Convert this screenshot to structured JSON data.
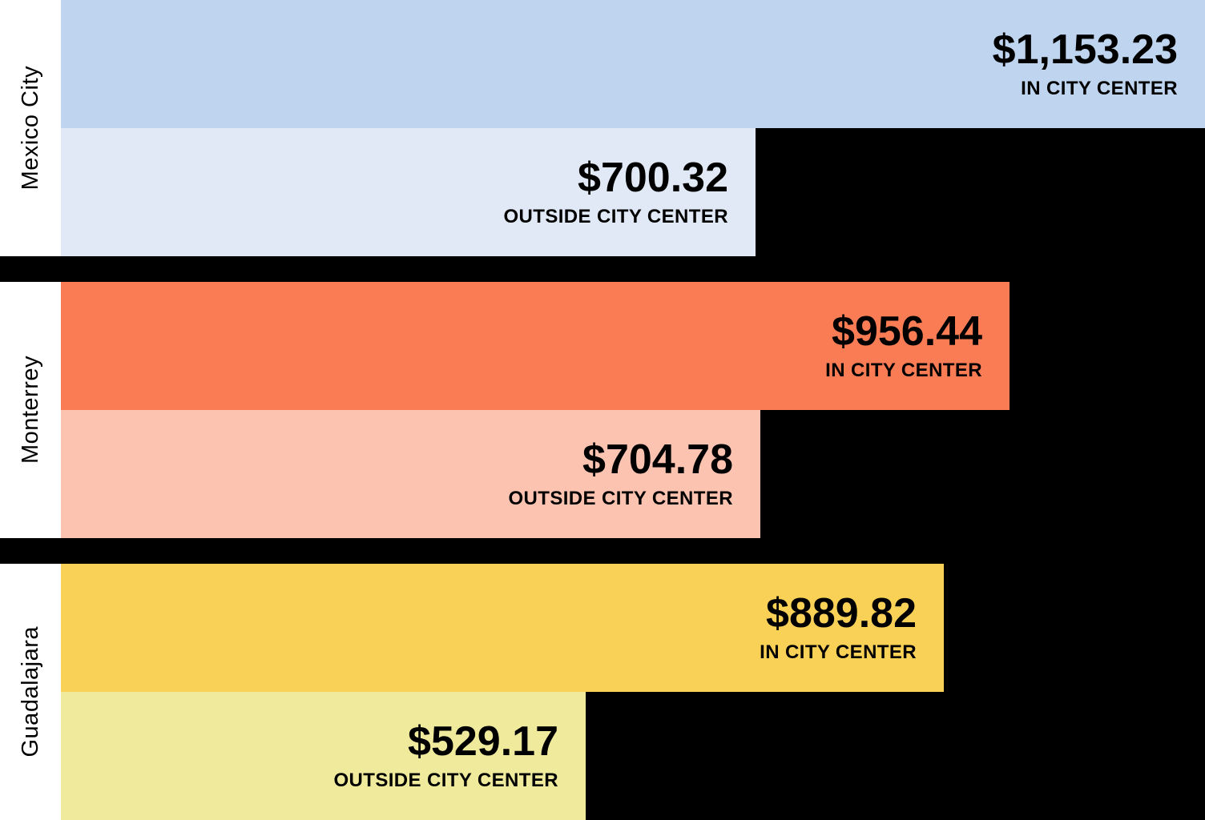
{
  "chart_data": {
    "type": "bar",
    "orientation": "horizontal",
    "unit": "USD",
    "value_axis_max": 1153.23,
    "legend_position": "none",
    "grid": false,
    "categories": [
      "Mexico City",
      "Monterrey",
      "Guadalajara"
    ],
    "series": [
      {
        "name": "IN CITY CENTER",
        "values": [
          1153.23,
          956.44,
          889.82
        ]
      },
      {
        "name": "OUTSIDE CITY CENTER",
        "values": [
          700.32,
          704.78,
          529.17
        ]
      }
    ],
    "cities": [
      {
        "name": "Mexico City",
        "bars": [
          {
            "caption": "IN CITY CENTER",
            "value": 1153.23,
            "display": "$1,153.23",
            "color": "#bed4ef"
          },
          {
            "caption": "OUTSIDE CITY CENTER",
            "value": 700.32,
            "display": "$700.32",
            "color": "#e0e9f5"
          }
        ]
      },
      {
        "name": "Monterrey",
        "bars": [
          {
            "caption": "IN CITY CENTER",
            "value": 956.44,
            "display": "$956.44",
            "color": "#fa7c55"
          },
          {
            "caption": "OUTSIDE CITY CENTER",
            "value": 704.78,
            "display": "$704.78",
            "color": "#fcc3b1"
          }
        ]
      },
      {
        "name": "Guadalajara",
        "bars": [
          {
            "caption": "IN CITY CENTER",
            "value": 889.82,
            "display": "$889.82",
            "color": "#fad157"
          },
          {
            "caption": "OUTSIDE CITY CENTER",
            "value": 529.17,
            "display": "$529.17",
            "color": "#f0eb9c"
          }
        ]
      }
    ]
  },
  "colors": {
    "background": "#000000",
    "label_column": "#ffffff",
    "text": "#000000"
  }
}
